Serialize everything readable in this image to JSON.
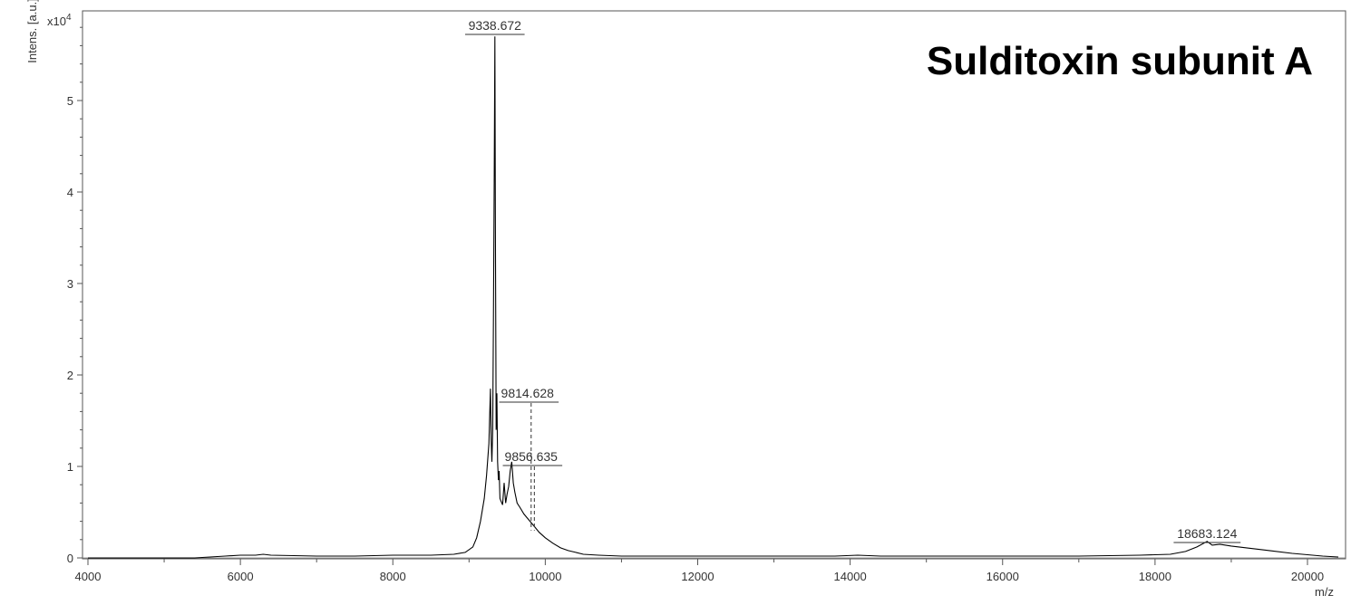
{
  "chart_data": {
    "type": "line",
    "title": "Sulditoxin subunit A",
    "xlabel": "m/z",
    "ylabel": "Intens. [a.u.]",
    "y_multiplier": "x10",
    "y_multiplier_exp": "4",
    "xlim": [
      4000,
      20800
    ],
    "ylim": [
      0,
      5.85
    ],
    "x_ticks": [
      4000,
      6000,
      8000,
      10000,
      12000,
      14000,
      16000,
      18000,
      20000
    ],
    "x_tick_labels": [
      "4000",
      "6000",
      "8000",
      "10000",
      "12000",
      "14000",
      "16000",
      "18000",
      "20000"
    ],
    "y_ticks": [
      0,
      1,
      2,
      3,
      4,
      5
    ],
    "y_tick_labels": [
      "0",
      "1",
      "2",
      "3",
      "4",
      "5"
    ],
    "grid": false,
    "legend": "none",
    "line_color": "#000000",
    "peaks": [
      {
        "label": "9338.672",
        "x": 9338.672,
        "y": 5.7,
        "dashed": false
      },
      {
        "label": "9814.628",
        "x": 9814.628,
        "y": 1.72,
        "dashed": true
      },
      {
        "label": "9856.635",
        "x": 9856.635,
        "y": 1.03,
        "dashed": true
      },
      {
        "label": "18683.124",
        "x": 18683.124,
        "y": 0.18,
        "dashed": false
      }
    ],
    "series": [
      {
        "x": [
          4000,
          5400,
          5800,
          6000,
          6200,
          6300,
          6400,
          7000,
          7500,
          8000,
          8500,
          8800,
          8950,
          9050,
          9100,
          9150,
          9200,
          9230,
          9260,
          9280,
          9290,
          9300,
          9310,
          9320,
          9330,
          9338.672,
          9345,
          9355,
          9365,
          9375,
          9385,
          9395,
          9405,
          9420,
          9440,
          9460,
          9480,
          9500,
          9520,
          9540,
          9560,
          9580,
          9600,
          9630,
          9670,
          9720,
          9780,
          9850,
          9920,
          10000,
          10100,
          10200,
          10300,
          10400,
          10500,
          10700,
          11000,
          11500,
          12000,
          13000,
          13800,
          14100,
          14400,
          15000,
          16000,
          17000,
          17800,
          18200,
          18400,
          18550,
          18683.124,
          18750,
          18850,
          19000,
          19200,
          19500,
          19800,
          20200,
          20800
        ],
        "y": [
          0.0,
          0.0,
          0.02,
          0.03,
          0.03,
          0.04,
          0.03,
          0.02,
          0.02,
          0.03,
          0.03,
          0.04,
          0.06,
          0.12,
          0.22,
          0.4,
          0.65,
          0.9,
          1.25,
          1.85,
          1.3,
          1.05,
          1.4,
          2.6,
          4.2,
          5.7,
          3.8,
          1.4,
          1.8,
          1.05,
          0.85,
          0.95,
          0.65,
          0.62,
          0.58,
          0.82,
          0.6,
          0.7,
          0.78,
          0.95,
          1.05,
          0.82,
          0.72,
          0.6,
          0.55,
          0.48,
          0.42,
          0.35,
          0.28,
          0.22,
          0.16,
          0.11,
          0.08,
          0.06,
          0.04,
          0.03,
          0.02,
          0.02,
          0.02,
          0.02,
          0.02,
          0.03,
          0.02,
          0.02,
          0.02,
          0.02,
          0.03,
          0.04,
          0.07,
          0.12,
          0.18,
          0.14,
          0.15,
          0.13,
          0.11,
          0.08,
          0.05,
          0.02,
          0.01
        ]
      }
    ]
  }
}
